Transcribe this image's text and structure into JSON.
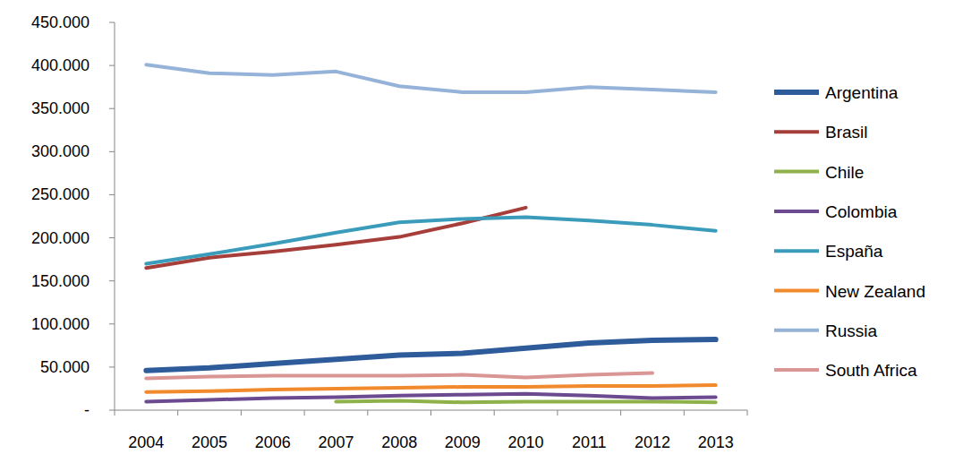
{
  "chart_data": {
    "type": "line",
    "categories": [
      "2004",
      "2005",
      "2006",
      "2007",
      "2008",
      "2009",
      "2010",
      "2011",
      "2012",
      "2013"
    ],
    "series": [
      {
        "name": "Argentina",
        "color": "#2e5b9a",
        "values": [
          46000,
          49000,
          54000,
          59000,
          64000,
          66000,
          72000,
          78000,
          81000,
          82000
        ]
      },
      {
        "name": "Brasil",
        "color": "#a63e3a",
        "values": [
          165000,
          177000,
          184000,
          192000,
          201000,
          217000,
          235000,
          null,
          null,
          null
        ]
      },
      {
        "name": "Chile",
        "color": "#8eb14a",
        "values": [
          null,
          null,
          null,
          10000,
          11000,
          9000,
          10000,
          10000,
          10000,
          9000
        ]
      },
      {
        "name": "Colombia",
        "color": "#6c4a90",
        "values": [
          10000,
          12000,
          14000,
          15000,
          17000,
          18000,
          19000,
          17000,
          14000,
          15000
        ]
      },
      {
        "name": "España",
        "color": "#3a9cba",
        "values": [
          170000,
          181000,
          193000,
          206000,
          218000,
          222000,
          224000,
          220000,
          215000,
          208000
        ]
      },
      {
        "name": "New Zealand",
        "color": "#f08a2c",
        "values": [
          21000,
          22000,
          24000,
          25000,
          26000,
          27000,
          27000,
          28000,
          28000,
          29000
        ]
      },
      {
        "name": "Russia",
        "color": "#95b3d8",
        "values": [
          401000,
          391000,
          389000,
          393000,
          376000,
          369000,
          369000,
          375000,
          372000,
          369000
        ]
      },
      {
        "name": "South Africa",
        "color": "#d99694",
        "values": [
          37000,
          39000,
          40000,
          40000,
          40000,
          41000,
          38000,
          41000,
          43000,
          null
        ]
      }
    ],
    "ylim": [
      0,
      450000
    ],
    "yticks": [
      {
        "value": 0,
        "label": "-"
      },
      {
        "value": 50000,
        "label": "50.000"
      },
      {
        "value": 100000,
        "label": "100.000"
      },
      {
        "value": 150000,
        "label": "150.000"
      },
      {
        "value": 200000,
        "label": "200.000"
      },
      {
        "value": 250000,
        "label": "250.000"
      },
      {
        "value": 300000,
        "label": "300.000"
      },
      {
        "value": 350000,
        "label": "350.000"
      },
      {
        "value": 400000,
        "label": "400.000"
      },
      {
        "value": 450000,
        "label": "450.000"
      }
    ],
    "grid": false,
    "legend": "right"
  }
}
